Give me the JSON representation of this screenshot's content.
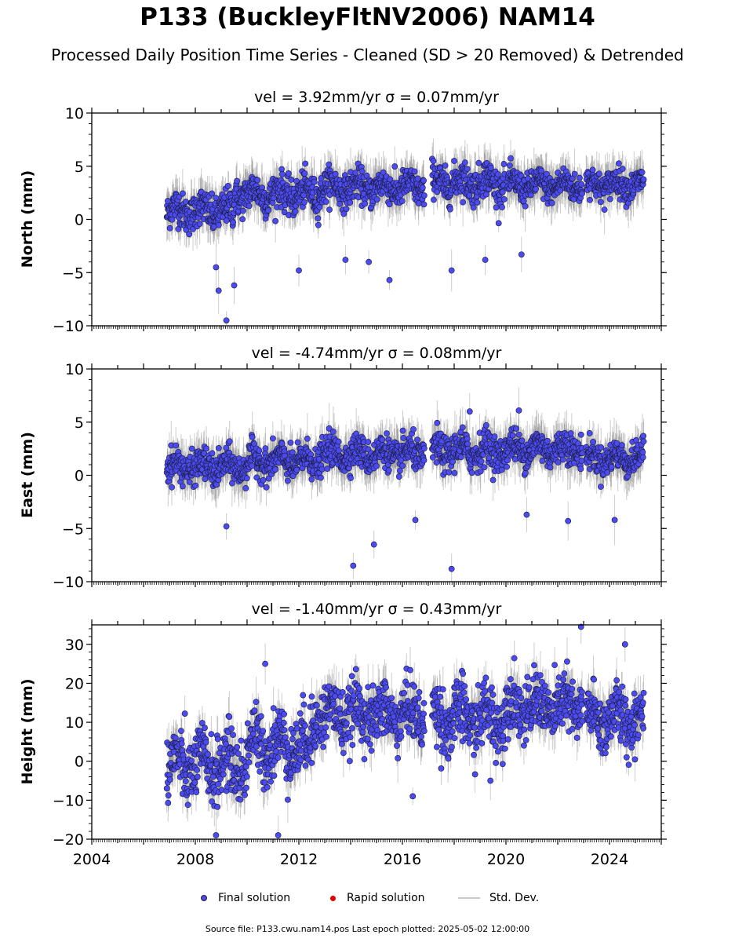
{
  "title": "P133 (BuckleyFltNV2006) NAM14",
  "subtitle": "Processed Daily Position Time Series - Cleaned (SD > 20 Removed) & Detrended",
  "legend": [
    {
      "label": "Final solution",
      "color": "#4b4bf0"
    },
    {
      "label": "Rapid solution",
      "color": "#e00000"
    },
    {
      "label": "Std. Dev.",
      "color": "#c8c8c8"
    }
  ],
  "footer": "Source file: P133.cwu.nam14.pos  Last epoch plotted: 2025-05-02 12:00:00",
  "chart_data": [
    {
      "type": "scatter",
      "title": "vel = 3.92mm/yr   σ = 0.07mm/yr",
      "ylabel": "North (mm)",
      "xlim": [
        2004,
        2026
      ],
      "ylim": [
        -10,
        10
      ],
      "yticks": [
        "10",
        "5",
        "0",
        "−5",
        "−10"
      ],
      "ytick_values": [
        10,
        5,
        0,
        -5,
        -10
      ],
      "date_range": [
        2006.9,
        2025.33
      ],
      "gaps": [
        [
          2016.85,
          2017.15
        ],
        [
          2019.95,
          2020.05
        ],
        [
          2022.95,
          2023.1
        ]
      ],
      "segments": [
        {
          "x": [
            2006.9,
            2009.5
          ],
          "mean": 0.8,
          "spread": 1.1
        },
        {
          "x": [
            2009.5,
            2012.8
          ],
          "mean": 2.4,
          "spread": 1.1
        },
        {
          "x": [
            2012.8,
            2016.85
          ],
          "mean": 3.0,
          "spread": 1.0
        },
        {
          "x": [
            2017.15,
            2019.95
          ],
          "mean": 3.5,
          "spread": 1.1
        },
        {
          "x": [
            2020.05,
            2022.95
          ],
          "mean": 3.2,
          "spread": 0.9
        },
        {
          "x": [
            2023.1,
            2025.33
          ],
          "mean": 3.3,
          "spread": 0.9
        }
      ],
      "outliers": [
        [
          2009.2,
          -9.5
        ],
        [
          2008.9,
          -6.7
        ],
        [
          2009.5,
          -6.2
        ],
        [
          2008.8,
          -4.5
        ],
        [
          2015.5,
          -5.7
        ],
        [
          2017.9,
          -4.8
        ],
        [
          2014.7,
          -4.0
        ],
        [
          2013.8,
          -3.8
        ],
        [
          2019.2,
          -3.8
        ],
        [
          2012.0,
          -4.8
        ],
        [
          2020.6,
          -3.3
        ]
      ]
    },
    {
      "type": "scatter",
      "title": "vel = -4.74mm/yr   σ = 0.08mm/yr",
      "ylabel": "East (mm)",
      "xlim": [
        2004,
        2026
      ],
      "ylim": [
        -10,
        10
      ],
      "yticks": [
        "10",
        "5",
        "0",
        "−5",
        "−10"
      ],
      "ytick_values": [
        10,
        5,
        0,
        -5,
        -10
      ],
      "date_range": [
        2006.9,
        2025.33
      ],
      "gaps": [
        [
          2016.85,
          2017.15
        ],
        [
          2022.95,
          2023.1
        ]
      ],
      "segments": [
        {
          "x": [
            2006.9,
            2010.0
          ],
          "mean": 0.8,
          "spread": 1.0
        },
        {
          "x": [
            2010.0,
            2012.8
          ],
          "mean": 1.3,
          "spread": 1.0
        },
        {
          "x": [
            2012.8,
            2016.85
          ],
          "mean": 2.0,
          "spread": 1.0
        },
        {
          "x": [
            2017.15,
            2019.95
          ],
          "mean": 2.3,
          "spread": 1.1
        },
        {
          "x": [
            2019.95,
            2022.95
          ],
          "mean": 2.5,
          "spread": 1.0
        },
        {
          "x": [
            2023.1,
            2025.33
          ],
          "mean": 1.6,
          "spread": 0.9
        }
      ],
      "outliers": [
        [
          2014.1,
          -8.5
        ],
        [
          2014.9,
          -6.5
        ],
        [
          2017.9,
          -8.8
        ],
        [
          2009.2,
          -4.8
        ],
        [
          2016.5,
          -4.2
        ],
        [
          2020.8,
          -3.7
        ],
        [
          2024.2,
          -4.2
        ],
        [
          2022.4,
          -4.3
        ],
        [
          2018.6,
          6.0
        ],
        [
          2020.5,
          6.1
        ]
      ]
    },
    {
      "type": "scatter",
      "title": "vel = -1.40mm/yr   σ = 0.43mm/yr",
      "ylabel": "Height (mm)",
      "xlim": [
        2004,
        2026
      ],
      "ylim": [
        -20,
        35
      ],
      "yticks": [
        "30",
        "20",
        "10",
        "0",
        "−10",
        "−20"
      ],
      "ytick_values": [
        30,
        20,
        10,
        0,
        -10,
        -20
      ],
      "date_range": [
        2006.9,
        2025.33
      ],
      "gaps": [
        [
          2016.85,
          2017.15
        ],
        [
          2022.95,
          2023.1
        ]
      ],
      "segments": [
        {
          "x": [
            2006.9,
            2010.0
          ],
          "mean": -1.0,
          "spread": 5.5
        },
        {
          "x": [
            2010.0,
            2012.5
          ],
          "mean": 4.0,
          "spread": 5.5
        },
        {
          "x": [
            2012.5,
            2016.85
          ],
          "mean": 12.0,
          "spread": 5.0
        },
        {
          "x": [
            2017.15,
            2019.95
          ],
          "mean": 11.0,
          "spread": 5.5
        },
        {
          "x": [
            2019.95,
            2022.95
          ],
          "mean": 14.0,
          "spread": 5.0
        },
        {
          "x": [
            2023.1,
            2025.33
          ],
          "mean": 11.0,
          "spread": 5.0
        }
      ],
      "outliers": [
        [
          2008.8,
          -19
        ],
        [
          2011.2,
          -19
        ],
        [
          2016.4,
          -9
        ],
        [
          2022.9,
          34.5
        ],
        [
          2024.6,
          30
        ],
        [
          2010.7,
          25
        ],
        [
          2019.4,
          -5
        ]
      ],
      "xticks": [
        "2004",
        "2008",
        "2012",
        "2016",
        "2020",
        "2024"
      ],
      "xtick_values": [
        2004,
        2008,
        2012,
        2016,
        2020,
        2024
      ]
    }
  ]
}
